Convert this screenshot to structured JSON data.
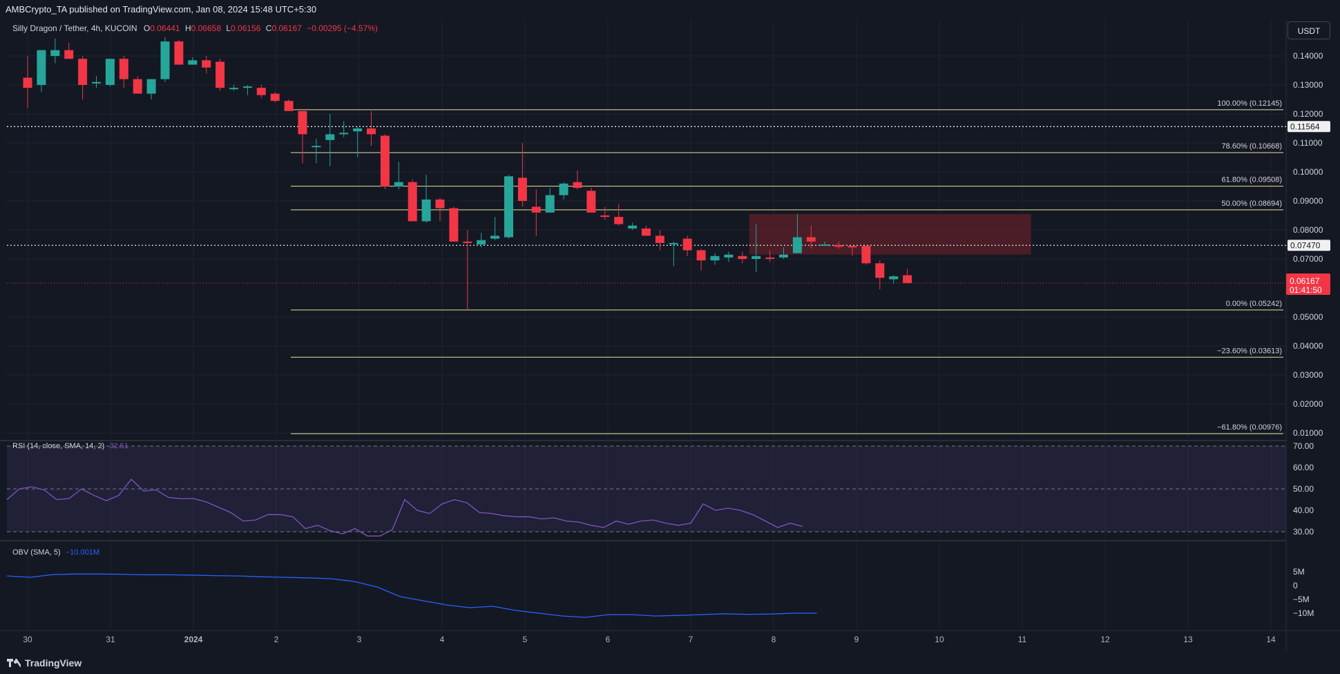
{
  "header": {
    "publisher_line": "AMBCrypto_TA published on TradingView.com, Jan 08, 2024 15:48 UTC+5:30"
  },
  "symbol": {
    "title": "Silly Dragon / Tether, 4h, KUCOIN",
    "o_label": "O",
    "o_value": "0.06441",
    "h_label": "H",
    "h_value": "0.06658",
    "l_label": "L",
    "l_value": "0.06156",
    "c_label": "C",
    "c_value": "0.06167",
    "change": "−0.00295 (−4.57%)"
  },
  "currency_button": "USDT",
  "price_axis": [
    "0.14000",
    "0.13000",
    "0.12000",
    "0.11000",
    "0.10000",
    "0.09000",
    "0.08000",
    "0.07000",
    "0.05000",
    "0.04000",
    "0.03000",
    "0.02000",
    "0.01000"
  ],
  "rsi_axis": [
    "70.00",
    "60.00",
    "50.00",
    "40.00",
    "30.00"
  ],
  "obv_axis": [
    "5M",
    "0",
    "−5M",
    "−10M"
  ],
  "time_axis": [
    "30",
    "31",
    "2024",
    "2",
    "3",
    "4",
    "5",
    "6",
    "7",
    "8",
    "9",
    "10",
    "11",
    "12",
    "13",
    "14"
  ],
  "price_tags": {
    "line1": "0.11564",
    "line2": "0.07470",
    "current_price": "0.06167",
    "countdown": "01:41:50"
  },
  "fib_labels": {
    "f100": "100.00% (0.12145)",
    "f786": "78.60% (0.10668)",
    "f618": "61.80% (0.09508)",
    "f50": "50.00% (0.08694)",
    "f0": "0.00% (0.05242)",
    "fm236": "−23.60% (0.03613)",
    "fm618": "−61.80% (0.00976)"
  },
  "rsi_legend": {
    "name": "RSI (14, close, SMA, 14, 2)",
    "value": "32.51"
  },
  "obv_legend": {
    "name": "OBV (SMA, 5)",
    "value": "−10.001M"
  },
  "footer": {
    "brand": "TradingView"
  },
  "colors": {
    "background": "#141823",
    "up": "#26a69a",
    "down": "#f23645",
    "fib": "#e8e6a0",
    "rsi_line": "#7e57c2",
    "obv_line": "#2962ff",
    "supply_zone": "#5c1f2a"
  },
  "chart_data": [
    {
      "type": "candlestick",
      "title": "Silly Dragon / Tether, 4h, KUCOIN",
      "ylim": [
        0.01,
        0.145
      ],
      "x_ticks": [
        "30",
        "31",
        "2024",
        "2",
        "3",
        "4",
        "5",
        "6",
        "7",
        "8",
        "9",
        "10",
        "11",
        "12",
        "13",
        "14"
      ],
      "candles": [
        {
          "o": 0.1325,
          "h": 0.14,
          "l": 0.122,
          "c": 0.129
        },
        {
          "o": 0.13,
          "h": 0.142,
          "l": 0.1275,
          "c": 0.142
        },
        {
          "o": 0.14,
          "h": 0.146,
          "l": 0.1375,
          "c": 0.142
        },
        {
          "o": 0.142,
          "h": 0.1445,
          "l": 0.139,
          "c": 0.139
        },
        {
          "o": 0.139,
          "h": 0.14,
          "l": 0.125,
          "c": 0.13
        },
        {
          "o": 0.1305,
          "h": 0.133,
          "l": 0.129,
          "c": 0.131
        },
        {
          "o": 0.13,
          "h": 0.139,
          "l": 0.1295,
          "c": 0.139
        },
        {
          "o": 0.139,
          "h": 0.14,
          "l": 0.129,
          "c": 0.132
        },
        {
          "o": 0.132,
          "h": 0.133,
          "l": 0.127,
          "c": 0.127
        },
        {
          "o": 0.127,
          "h": 0.132,
          "l": 0.125,
          "c": 0.132
        },
        {
          "o": 0.132,
          "h": 0.1465,
          "l": 0.131,
          "c": 0.145
        },
        {
          "o": 0.145,
          "h": 0.1455,
          "l": 0.137,
          "c": 0.137
        },
        {
          "o": 0.137,
          "h": 0.1395,
          "l": 0.137,
          "c": 0.1385
        },
        {
          "o": 0.1385,
          "h": 0.14,
          "l": 0.134,
          "c": 0.136
        },
        {
          "o": 0.138,
          "h": 0.139,
          "l": 0.128,
          "c": 0.129
        },
        {
          "o": 0.129,
          "h": 0.13,
          "l": 0.128,
          "c": 0.129
        },
        {
          "o": 0.129,
          "h": 0.13,
          "l": 0.1265,
          "c": 0.1295
        },
        {
          "o": 0.129,
          "h": 0.13,
          "l": 0.1255,
          "c": 0.1265
        },
        {
          "o": 0.127,
          "h": 0.1275,
          "l": 0.124,
          "c": 0.1245
        },
        {
          "o": 0.1245,
          "h": 0.125,
          "l": 0.121,
          "c": 0.121
        },
        {
          "o": 0.121,
          "h": 0.121,
          "l": 0.103,
          "c": 0.113
        },
        {
          "o": 0.109,
          "h": 0.1115,
          "l": 0.103,
          "c": 0.109
        },
        {
          "o": 0.111,
          "h": 0.12,
          "l": 0.102,
          "c": 0.113
        },
        {
          "o": 0.113,
          "h": 0.1175,
          "l": 0.112,
          "c": 0.1135
        },
        {
          "o": 0.114,
          "h": 0.1155,
          "l": 0.105,
          "c": 0.115
        },
        {
          "o": 0.115,
          "h": 0.121,
          "l": 0.109,
          "c": 0.113
        },
        {
          "o": 0.1125,
          "h": 0.113,
          "l": 0.094,
          "c": 0.095
        },
        {
          "o": 0.095,
          "h": 0.1035,
          "l": 0.094,
          "c": 0.0965
        },
        {
          "o": 0.0965,
          "h": 0.0975,
          "l": 0.083,
          "c": 0.083
        },
        {
          "o": 0.083,
          "h": 0.099,
          "l": 0.0825,
          "c": 0.0905
        },
        {
          "o": 0.0905,
          "h": 0.091,
          "l": 0.083,
          "c": 0.0875
        },
        {
          "o": 0.0875,
          "h": 0.088,
          "l": 0.076,
          "c": 0.076
        },
        {
          "o": 0.076,
          "h": 0.08,
          "l": 0.0524,
          "c": 0.0755
        },
        {
          "o": 0.075,
          "h": 0.079,
          "l": 0.074,
          "c": 0.0765
        },
        {
          "o": 0.077,
          "h": 0.0845,
          "l": 0.0765,
          "c": 0.078
        },
        {
          "o": 0.0775,
          "h": 0.099,
          "l": 0.077,
          "c": 0.0985
        },
        {
          "o": 0.098,
          "h": 0.11,
          "l": 0.088,
          "c": 0.09
        },
        {
          "o": 0.088,
          "h": 0.094,
          "l": 0.078,
          "c": 0.086
        },
        {
          "o": 0.086,
          "h": 0.0945,
          "l": 0.086,
          "c": 0.092
        },
        {
          "o": 0.092,
          "h": 0.0965,
          "l": 0.0905,
          "c": 0.096
        },
        {
          "o": 0.0965,
          "h": 0.1005,
          "l": 0.094,
          "c": 0.0945
        },
        {
          "o": 0.0935,
          "h": 0.0945,
          "l": 0.086,
          "c": 0.086
        },
        {
          "o": 0.085,
          "h": 0.088,
          "l": 0.0835,
          "c": 0.0845
        },
        {
          "o": 0.0845,
          "h": 0.089,
          "l": 0.0815,
          "c": 0.082
        },
        {
          "o": 0.0805,
          "h": 0.0825,
          "l": 0.08,
          "c": 0.0815
        },
        {
          "o": 0.0805,
          "h": 0.0815,
          "l": 0.078,
          "c": 0.078
        },
        {
          "o": 0.078,
          "h": 0.08,
          "l": 0.073,
          "c": 0.0755
        },
        {
          "o": 0.0755,
          "h": 0.076,
          "l": 0.0675,
          "c": 0.0755
        },
        {
          "o": 0.077,
          "h": 0.078,
          "l": 0.071,
          "c": 0.073
        },
        {
          "o": 0.073,
          "h": 0.0735,
          "l": 0.066,
          "c": 0.0695
        },
        {
          "o": 0.0695,
          "h": 0.072,
          "l": 0.068,
          "c": 0.071
        },
        {
          "o": 0.0705,
          "h": 0.0725,
          "l": 0.069,
          "c": 0.0715
        },
        {
          "o": 0.071,
          "h": 0.0725,
          "l": 0.0685,
          "c": 0.07
        },
        {
          "o": 0.07,
          "h": 0.082,
          "l": 0.0655,
          "c": 0.071
        },
        {
          "o": 0.0705,
          "h": 0.073,
          "l": 0.069,
          "c": 0.07
        },
        {
          "o": 0.0705,
          "h": 0.074,
          "l": 0.07,
          "c": 0.0715
        },
        {
          "o": 0.072,
          "h": 0.0855,
          "l": 0.072,
          "c": 0.0775
        },
        {
          "o": 0.0775,
          "h": 0.0815,
          "l": 0.0735,
          "c": 0.076
        },
        {
          "o": 0.075,
          "h": 0.076,
          "l": 0.0745,
          "c": 0.075
        },
        {
          "o": 0.0748,
          "h": 0.076,
          "l": 0.0735,
          "c": 0.0742
        },
        {
          "o": 0.0745,
          "h": 0.0745,
          "l": 0.071,
          "c": 0.074
        },
        {
          "o": 0.0745,
          "h": 0.0745,
          "l": 0.068,
          "c": 0.0685
        },
        {
          "o": 0.0685,
          "h": 0.0695,
          "l": 0.0595,
          "c": 0.0635
        },
        {
          "o": 0.063,
          "h": 0.0645,
          "l": 0.0615,
          "c": 0.064
        },
        {
          "o": 0.0644,
          "h": 0.0666,
          "l": 0.0616,
          "c": 0.0617
        }
      ],
      "horizontal_lines": [
        0.11564,
        0.0747
      ],
      "fib_levels": [
        {
          "ratio": "100.00%",
          "price": 0.12145
        },
        {
          "ratio": "78.60%",
          "price": 0.10668
        },
        {
          "ratio": "61.80%",
          "price": 0.09508
        },
        {
          "ratio": "50.00%",
          "price": 0.08694
        },
        {
          "ratio": "0.00%",
          "price": 0.05242
        },
        {
          "ratio": "−23.60%",
          "price": 0.03613
        },
        {
          "ratio": "−61.80%",
          "price": 0.00976
        }
      ],
      "zone": {
        "from_bar": 52.5,
        "to_bar": 73,
        "top": 0.0855,
        "bottom": 0.0715
      }
    },
    {
      "type": "line",
      "title": "RSI (14, close, SMA, 14, 2)",
      "ylim": [
        27,
        71
      ],
      "bands": [
        70,
        50,
        30
      ],
      "values": [
        45,
        50,
        51,
        49.5,
        45,
        45.5,
        50,
        47,
        44.5,
        47,
        54.5,
        49,
        49.5,
        46,
        45.5,
        45.5,
        44,
        41.5,
        39,
        35,
        35.5,
        38,
        38,
        37,
        31.5,
        33,
        30.5,
        29,
        31.5,
        28,
        28,
        31,
        45,
        40,
        38.5,
        43,
        45,
        43.5,
        39,
        38.5,
        37.5,
        37,
        37,
        36,
        36.5,
        35,
        34.5,
        33,
        32,
        35,
        33.5,
        35,
        35.5,
        34,
        33,
        34,
        43,
        40,
        41,
        40,
        38,
        35,
        32,
        34,
        32.5
      ]
    },
    {
      "type": "line",
      "title": "OBV (SMA, 5)",
      "ylim": [
        -12,
        6
      ],
      "values": [
        3.5,
        3,
        4,
        4.2,
        4.2,
        4.1,
        3.9,
        3.9,
        3.8,
        3.6,
        3.5,
        3.2,
        3,
        2.8,
        2.5,
        1.5,
        -0.5,
        -4,
        -5.5,
        -7,
        -8,
        -7.5,
        -9,
        -10,
        -11,
        -11.5,
        -10.5,
        -10.5,
        -11,
        -10.8,
        -10.5,
        -10.2,
        -10.4,
        -10.3,
        -10,
        -10.001
      ]
    }
  ]
}
